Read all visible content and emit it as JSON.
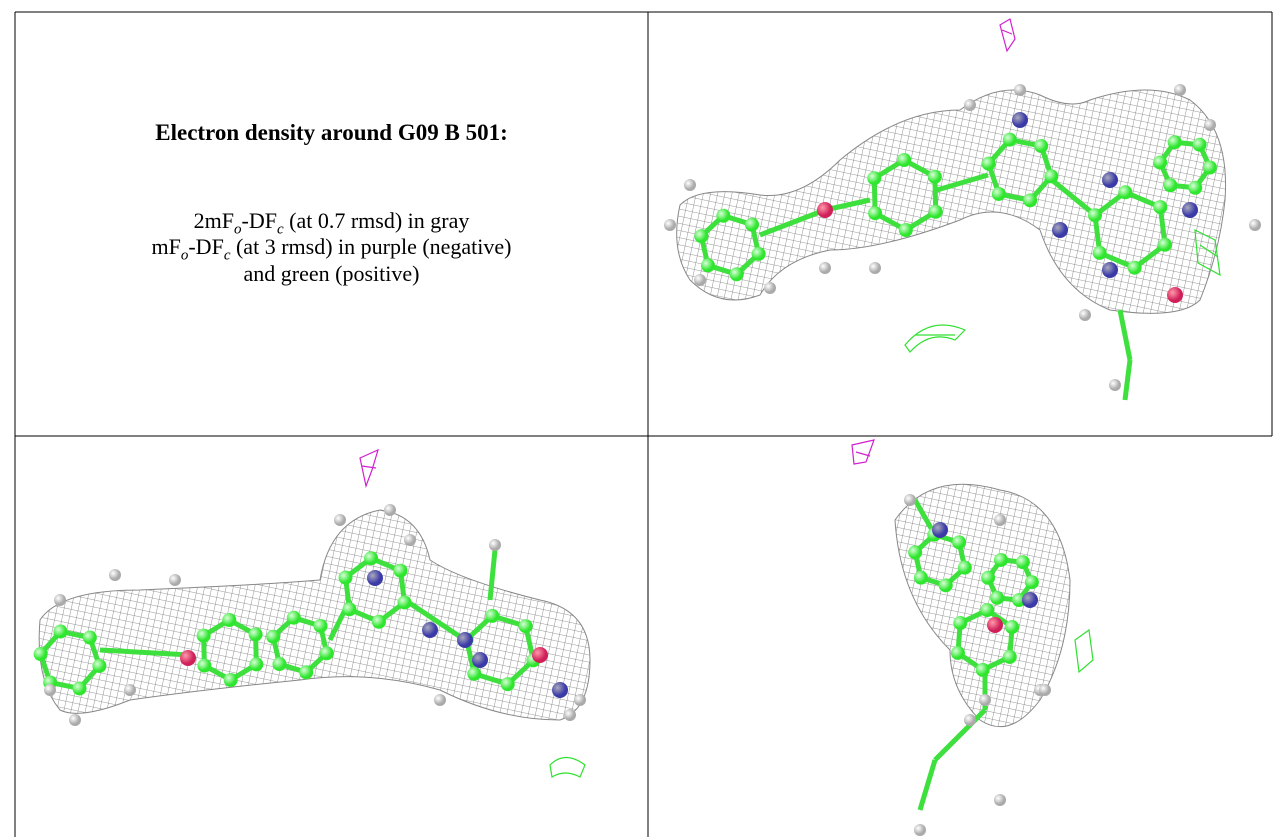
{
  "table": {
    "rows": [
      [
        {
          "title": "Electron density around G09 B 501:",
          "lines": [
            [
              "2mF",
              "o",
              "-DF",
              "c",
              " (at 0.7 rmsd) in gray"
            ],
            [
              "mF",
              "o",
              "-DF",
              "c",
              " (at 3 rmsd) in purple (negative)"
            ],
            [
              "and green (positive)"
            ]
          ]
        }
      ]
    ]
  }
}
